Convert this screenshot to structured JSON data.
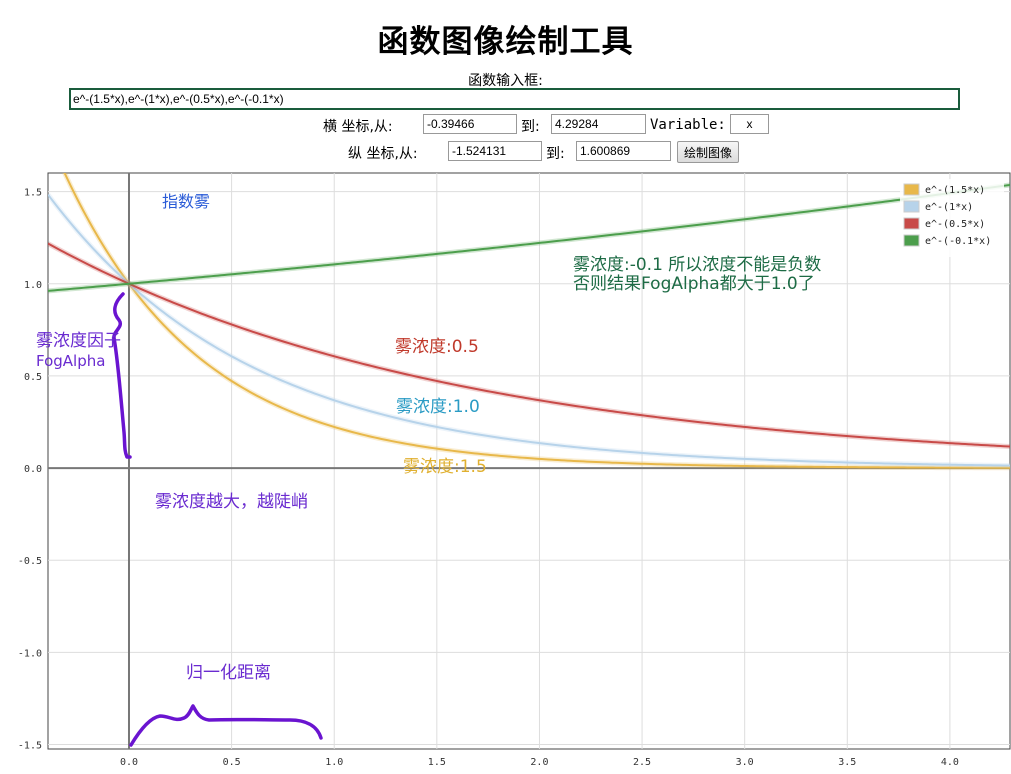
{
  "page": {
    "title": "函数图像绘制工具",
    "input_label": "函数输入框:",
    "function_value": "e^-(1.5*x),e^-(1*x),e^-(0.5*x),e^-(-0.1*x)",
    "x_range_label": "横 坐标,从:",
    "x_from": "-0.39466",
    "to_label": "到:",
    "x_to": "4.29284",
    "variable_label": "Variable:",
    "variable_value": "x",
    "y_range_label": "纵 坐标,从:",
    "y_from": "-1.524131",
    "y_to": "1.600869",
    "draw_button": "绘制图像"
  },
  "chart_data": {
    "type": "line",
    "xlim": [
      -0.39466,
      4.29284
    ],
    "ylim": [
      -1.524131,
      1.600869
    ],
    "grid": true,
    "legend_position": "top-right",
    "x_ticks": [
      0.0,
      0.5,
      1.0,
      1.5,
      2.0,
      2.5,
      3.0,
      3.5,
      4.0
    ],
    "x_tick_labels": [
      "0.0",
      "0.5",
      "1.0",
      "1.5",
      "2.0",
      "2.5",
      "3.0",
      "3.5",
      "4.0"
    ],
    "y_ticks": [
      1.5,
      1.0,
      0.5,
      0.0,
      -0.5,
      -1.0,
      -1.5
    ],
    "y_tick_labels": [
      "1.5",
      "1.0",
      "0.5",
      "0.0",
      "-0.5",
      "-1.0",
      "-1.5"
    ],
    "series": [
      {
        "name": "e^-(1.5*x)",
        "k": 1.5,
        "color": "#e8b84a"
      },
      {
        "name": "e^-(1*x)",
        "k": 1.0,
        "color": "#b7d3ea"
      },
      {
        "name": "e^-(0.5*x)",
        "k": 0.5,
        "color": "#c84a48"
      },
      {
        "name": "e^-(-0.1*x)",
        "k": -0.1,
        "color": "#4c9e4c"
      }
    ],
    "annotations": [
      {
        "text": "指数雾",
        "color": "#2a5bd7"
      },
      {
        "text": "雾浓度:-0.1 所以浓度不能是负数",
        "color": "#1d6b45"
      },
      {
        "text": "否则结果FogAlpha都大于1.0了",
        "color": "#1d6b45"
      },
      {
        "text": "雾浓度因子",
        "color": "#6a2bd0"
      },
      {
        "text": "FogAlpha",
        "color": "#6a2bd0"
      },
      {
        "text": "雾浓度:0.5",
        "color": "#c0392b"
      },
      {
        "text": "雾浓度:1.0",
        "color": "#2a9bc4"
      },
      {
        "text": "雾浓度:1.5",
        "color": "#e0b030"
      },
      {
        "text": "雾浓度越大，越陡峭",
        "color": "#6a2bd0"
      },
      {
        "text": "归一化距离",
        "color": "#6a2bd0"
      }
    ]
  }
}
